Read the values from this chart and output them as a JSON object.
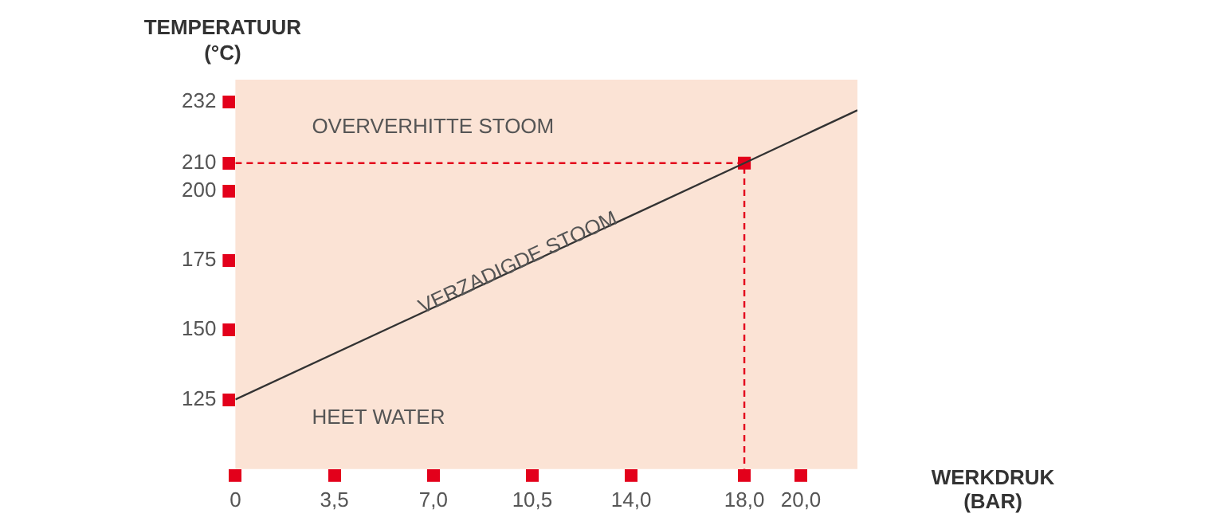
{
  "chart_data": {
    "type": "line",
    "xlabel": "WERKDRUK\n(BAR)",
    "ylabel": "TEMPERATUUR\n(°C)",
    "xlim": [
      0,
      22
    ],
    "ylim": [
      100,
      240
    ],
    "xticks": [
      0,
      {
        "value": 3.5,
        "label": "3,5"
      },
      {
        "value": 7,
        "label": "7,0"
      },
      {
        "value": 10.5,
        "label": "10,5"
      },
      {
        "value": 14,
        "label": "14,0"
      },
      {
        "value": 18,
        "label": "18,0"
      },
      {
        "value": 20,
        "label": "20,0"
      }
    ],
    "yticks": [
      125,
      150,
      175,
      200,
      210,
      232
    ],
    "series": [
      {
        "type": "line",
        "color": "#333333",
        "x": [
          0,
          18,
          22
        ],
        "values": [
          125,
          210,
          229
        ]
      },
      {
        "type": "line",
        "color": "#e3001b",
        "line_style": "dashed",
        "x": [
          0,
          18,
          18
        ],
        "values": [
          210,
          210,
          100
        ]
      },
      {
        "type": "scatter",
        "marker": "square",
        "color": "#e3001b",
        "x": [
          18
        ],
        "values": [
          210
        ]
      }
    ],
    "annotations": [
      "OVERVERHITTE STOOM",
      {
        "text": "VERZADIGDE STOOM",
        "x": 10,
        "y": 174
      },
      "HEET WATER"
    ],
    "grid": false,
    "legend": false
  }
}
